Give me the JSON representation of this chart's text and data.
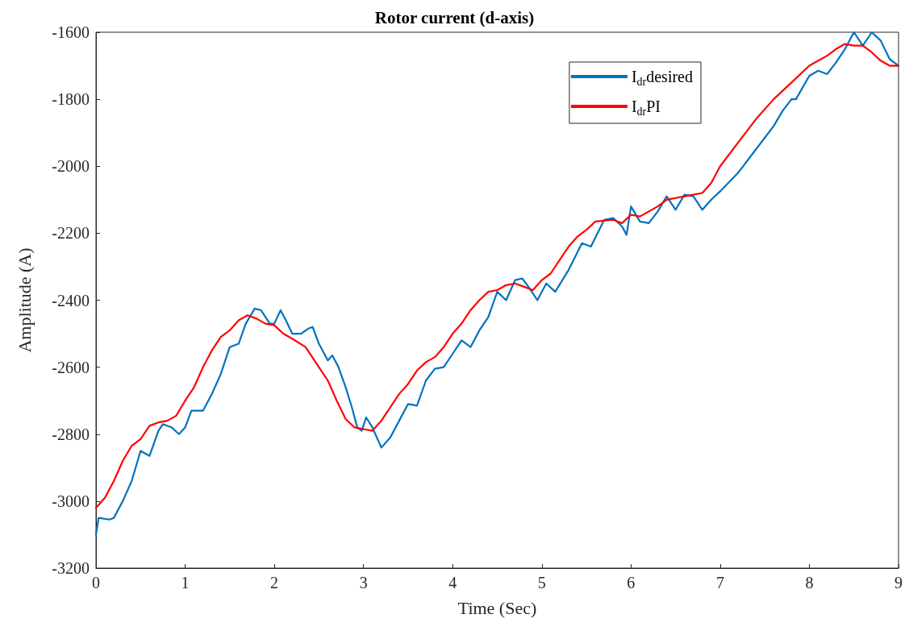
{
  "chart_data": {
    "type": "line",
    "title": "Rotor current (d-axis)",
    "xlabel": "Time (Sec)",
    "ylabel": "Amplitude (A)",
    "xlim": [
      0,
      9
    ],
    "xticks": [
      0,
      1,
      2,
      3,
      4,
      5,
      6,
      7,
      8,
      9
    ],
    "ylim": [
      -3200,
      -1600
    ],
    "yticks": [
      -3200,
      -3000,
      -2800,
      -2600,
      -2400,
      -2200,
      -2000,
      -1800,
      -1600
    ],
    "grid": false,
    "legend": "top right",
    "marker": "none",
    "line_style": "solid",
    "series": [
      {
        "name": "I$_{dr}$desired",
        "color": "#0072bd",
        "x": [
          0,
          0.03,
          0.15,
          0.2,
          0.3,
          0.4,
          0.5,
          0.6,
          0.7,
          0.75,
          0.85,
          0.93,
          1.0,
          1.07,
          1.2,
          1.3,
          1.4,
          1.5,
          1.6,
          1.68,
          1.78,
          1.85,
          1.95,
          2.0,
          2.07,
          2.13,
          2.2,
          2.3,
          2.38,
          2.43,
          2.5,
          2.6,
          2.65,
          2.72,
          2.8,
          2.87,
          2.93,
          2.98,
          3.03,
          3.1,
          3.2,
          3.3,
          3.4,
          3.5,
          3.6,
          3.7,
          3.8,
          3.9,
          4.0,
          4.1,
          4.2,
          4.3,
          4.4,
          4.5,
          4.6,
          4.7,
          4.78,
          4.85,
          4.95,
          5.05,
          5.15,
          5.3,
          5.45,
          5.55,
          5.7,
          5.8,
          5.9,
          5.95,
          6.0,
          6.1,
          6.2,
          6.3,
          6.4,
          6.5,
          6.6,
          6.7,
          6.8,
          6.9,
          7.0,
          7.2,
          7.4,
          7.6,
          7.7,
          7.8,
          7.85,
          8.0,
          8.1,
          8.2,
          8.3,
          8.4,
          8.5,
          8.6,
          8.7,
          8.8,
          8.9,
          9.0
        ],
        "values": [
          -3100,
          -3050,
          -3055,
          -3050,
          -3000,
          -2940,
          -2850,
          -2865,
          -2790,
          -2770,
          -2780,
          -2800,
          -2780,
          -2730,
          -2730,
          -2680,
          -2620,
          -2540,
          -2530,
          -2470,
          -2425,
          -2430,
          -2470,
          -2470,
          -2430,
          -2460,
          -2500,
          -2500,
          -2485,
          -2480,
          -2530,
          -2580,
          -2565,
          -2600,
          -2660,
          -2720,
          -2780,
          -2790,
          -2750,
          -2780,
          -2840,
          -2810,
          -2760,
          -2710,
          -2715,
          -2640,
          -2605,
          -2600,
          -2560,
          -2520,
          -2540,
          -2490,
          -2450,
          -2375,
          -2400,
          -2340,
          -2335,
          -2360,
          -2400,
          -2350,
          -2375,
          -2310,
          -2230,
          -2240,
          -2160,
          -2155,
          -2180,
          -2205,
          -2120,
          -2165,
          -2170,
          -2135,
          -2090,
          -2130,
          -2085,
          -2090,
          -2130,
          -2100,
          -2075,
          -2020,
          -1950,
          -1880,
          -1835,
          -1800,
          -1800,
          -1730,
          -1715,
          -1725,
          -1690,
          -1650,
          -1600,
          -1640,
          -1600,
          -1625,
          -1680,
          -1700
        ]
      },
      {
        "name": "I$_{dr}$PI",
        "color": "#ff0000",
        "x": [
          0,
          0.1,
          0.2,
          0.3,
          0.4,
          0.5,
          0.6,
          0.7,
          0.8,
          0.9,
          1.0,
          1.1,
          1.2,
          1.3,
          1.4,
          1.5,
          1.6,
          1.7,
          1.8,
          1.9,
          2.0,
          2.1,
          2.2,
          2.35,
          2.5,
          2.6,
          2.7,
          2.8,
          2.9,
          3.0,
          3.1,
          3.2,
          3.3,
          3.4,
          3.5,
          3.6,
          3.7,
          3.8,
          3.9,
          4.0,
          4.1,
          4.2,
          4.3,
          4.4,
          4.5,
          4.6,
          4.7,
          4.8,
          4.9,
          5.0,
          5.1,
          5.2,
          5.3,
          5.4,
          5.5,
          5.6,
          5.8,
          5.9,
          6.0,
          6.1,
          6.2,
          6.3,
          6.4,
          6.5,
          6.6,
          6.8,
          6.9,
          7.0,
          7.2,
          7.4,
          7.6,
          7.8,
          8.0,
          8.2,
          8.3,
          8.4,
          8.5,
          8.6,
          8.7,
          8.8,
          8.9,
          9.0
        ],
        "values": [
          -3020,
          -2990,
          -2940,
          -2880,
          -2835,
          -2815,
          -2775,
          -2765,
          -2760,
          -2745,
          -2700,
          -2660,
          -2600,
          -2550,
          -2510,
          -2490,
          -2460,
          -2445,
          -2455,
          -2470,
          -2475,
          -2500,
          -2515,
          -2540,
          -2600,
          -2640,
          -2700,
          -2755,
          -2780,
          -2785,
          -2790,
          -2760,
          -2720,
          -2680,
          -2650,
          -2610,
          -2585,
          -2570,
          -2540,
          -2500,
          -2470,
          -2430,
          -2400,
          -2375,
          -2370,
          -2355,
          -2350,
          -2360,
          -2370,
          -2340,
          -2320,
          -2280,
          -2240,
          -2210,
          -2190,
          -2165,
          -2160,
          -2170,
          -2145,
          -2150,
          -2135,
          -2120,
          -2100,
          -2095,
          -2090,
          -2080,
          -2050,
          -2000,
          -1930,
          -1860,
          -1800,
          -1750,
          -1700,
          -1670,
          -1650,
          -1635,
          -1640,
          -1640,
          -1660,
          -1685,
          -1700,
          -1700
        ]
      }
    ]
  }
}
